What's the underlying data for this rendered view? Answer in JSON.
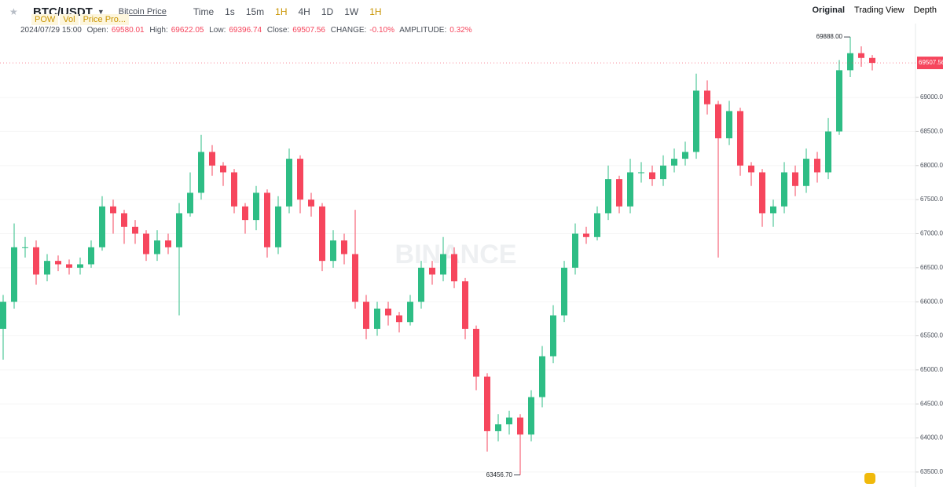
{
  "header": {
    "pair": "BTC/USDT",
    "link": "Bitcoin Price",
    "tags": [
      "POW",
      "Vol",
      "Price Pro..."
    ],
    "intervals": [
      "Time",
      "1s",
      "15m",
      "1H",
      "4H",
      "1D",
      "1W",
      "1H"
    ],
    "views": [
      "Original",
      "Trading View",
      "Depth"
    ]
  },
  "info": {
    "date": "2024/07/29 15:00",
    "open_label": "Open:",
    "high_label": "High:",
    "low_label": "Low:",
    "close_label": "Close:",
    "change_label": "CHANGE:",
    "change": "-0.10%",
    "amplitude_label": "AMPLITUDE:",
    "amplitude": "0.32%"
  },
  "chart_data": {
    "type": "candlestick",
    "watermark": "BINANCE",
    "up_color": "#2ebd85",
    "down_color": "#f6465d",
    "ylim": [
      63280,
      70085
    ],
    "yticks": [
      {
        "value": 63500,
        "label": "63500.00"
      },
      {
        "value": 64000,
        "label": "64000.00"
      },
      {
        "value": 64500,
        "label": "64500.00"
      },
      {
        "value": 65000,
        "label": "65000.00"
      },
      {
        "value": 65500,
        "label": "65500.00"
      },
      {
        "value": 66000,
        "label": "66000.00"
      },
      {
        "value": 66500,
        "label": "66500.00"
      },
      {
        "value": 67000,
        "label": "67000.00"
      },
      {
        "value": 67500,
        "label": "67500.00"
      },
      {
        "value": 68000,
        "label": "68000.00"
      },
      {
        "value": 68500,
        "label": "68500.00"
      },
      {
        "value": 69000,
        "label": "69000.00"
      }
    ],
    "max_label": "69888.00",
    "min_label": "63456.70",
    "open": [
      65600,
      66000,
      66800,
      66800,
      66400,
      66600,
      66550,
      66500,
      66550,
      66800,
      67400,
      67300,
      67100,
      67000,
      66700,
      66900,
      66800,
      67300,
      67600,
      68200,
      68000,
      67900,
      67400,
      67200,
      67600,
      66800,
      67400,
      68100,
      67500,
      67400,
      66600,
      66900,
      66700,
      66000,
      65600,
      65900,
      65800,
      65700,
      66000,
      66500,
      66400,
      66700,
      66300,
      65600,
      64900,
      64100,
      64200,
      64300,
      64050,
      64600,
      65200,
      65800,
      66500,
      67000,
      66950,
      67300,
      67800,
      67400,
      67900,
      67900,
      67800,
      68000,
      68100,
      68200,
      69100,
      68900,
      68400,
      68800,
      68000,
      67900,
      67300,
      67400,
      67900,
      67700,
      68100,
      67900,
      68500,
      69400,
      69650,
      69580.01
    ],
    "high": [
      66100,
      67150,
      66950,
      66900,
      66700,
      66680,
      66620,
      66650,
      66900,
      67550,
      67500,
      67350,
      67200,
      67050,
      67050,
      67000,
      67450,
      67900,
      68450,
      68300,
      68050,
      67950,
      67450,
      67700,
      67650,
      67550,
      68250,
      68150,
      67600,
      67450,
      67050,
      67000,
      67350,
      66100,
      66000,
      66000,
      65850,
      66100,
      66600,
      66600,
      66950,
      66800,
      66350,
      65650,
      64950,
      64350,
      64400,
      64350,
      64700,
      65350,
      65950,
      66600,
      67150,
      67100,
      67400,
      68000,
      67850,
      68100,
      68050,
      68000,
      68150,
      68250,
      68350,
      69350,
      69250,
      68950,
      68950,
      68850,
      68050,
      67950,
      67500,
      68050,
      68000,
      68250,
      68200,
      68700,
      69550,
      69888,
      69750,
      69622.05
    ],
    "low": [
      65150,
      65900,
      66650,
      66250,
      66300,
      66450,
      66400,
      66400,
      66500,
      66750,
      67000,
      66850,
      66850,
      66600,
      66600,
      66700,
      65800,
      67250,
      67500,
      67850,
      67700,
      67300,
      67000,
      67050,
      66650,
      66700,
      67300,
      67300,
      67250,
      66450,
      66500,
      66550,
      65900,
      65450,
      65500,
      65650,
      65550,
      65650,
      65900,
      66250,
      66300,
      66200,
      65450,
      64700,
      63800,
      63950,
      64050,
      63456.7,
      63950,
      64450,
      65100,
      65700,
      66400,
      66850,
      66900,
      67200,
      67300,
      67300,
      67750,
      67700,
      67700,
      67900,
      68000,
      68100,
      68750,
      66650,
      68300,
      67850,
      67700,
      67100,
      67100,
      67300,
      67550,
      67600,
      67750,
      67800,
      68450,
      69300,
      69450,
      69396.74
    ],
    "close": [
      66000,
      66800,
      66800,
      66400,
      66600,
      66550,
      66500,
      66550,
      66800,
      67400,
      67300,
      67100,
      67000,
      66700,
      66900,
      66800,
      67300,
      67600,
      68200,
      68000,
      67900,
      67400,
      67200,
      67600,
      66800,
      67400,
      68100,
      67500,
      67400,
      66600,
      66900,
      66700,
      66000,
      65600,
      65900,
      65800,
      65700,
      66000,
      66500,
      66400,
      66700,
      66300,
      65600,
      64900,
      64100,
      64200,
      64300,
      64050,
      64600,
      65200,
      65800,
      66500,
      67000,
      66950,
      67300,
      67800,
      67400,
      67900,
      67900,
      67800,
      68000,
      68100,
      68200,
      69100,
      68900,
      68400,
      68800,
      68000,
      67900,
      67300,
      67400,
      67900,
      67700,
      68100,
      67900,
      68500,
      69400,
      69650,
      69580,
      69507.56
    ]
  }
}
